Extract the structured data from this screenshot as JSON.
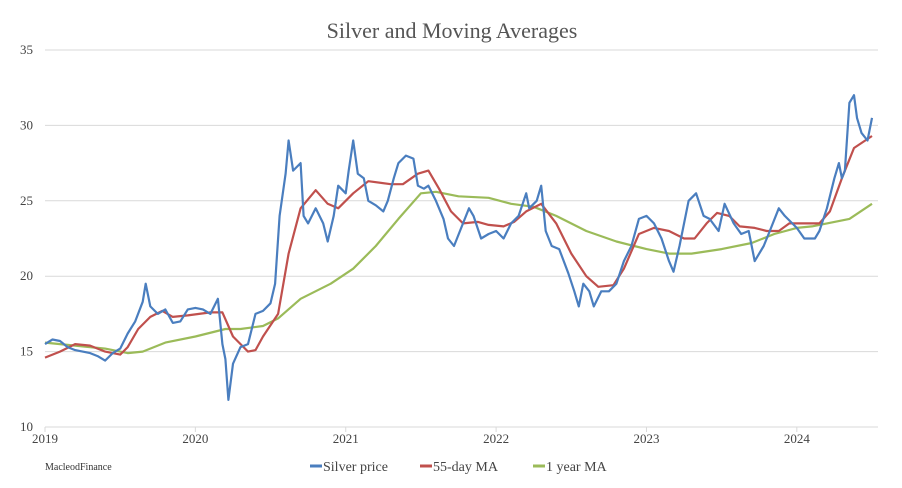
{
  "chart_data": {
    "type": "line",
    "title": "Silver and Moving Averages",
    "xlabel": "",
    "ylabel": "",
    "xlim": [
      2019,
      2024.5
    ],
    "ylim": [
      10,
      35
    ],
    "x_ticks": [
      "2019",
      "2020",
      "2021",
      "2022",
      "2023",
      "2024"
    ],
    "y_ticks": [
      "10",
      "15",
      "20",
      "25",
      "30",
      "35"
    ],
    "grid": true,
    "legend_position": "bottom",
    "credit": "MacleodFinance",
    "series": [
      {
        "name": "Silver price",
        "color": "#4a7ebf",
        "x": [
          2019.0,
          2019.05,
          2019.1,
          2019.15,
          2019.2,
          2019.25,
          2019.3,
          2019.35,
          2019.4,
          2019.45,
          2019.5,
          2019.55,
          2019.6,
          2019.65,
          2019.67,
          2019.7,
          2019.75,
          2019.8,
          2019.85,
          2019.9,
          2019.95,
          2020.0,
          2020.05,
          2020.1,
          2020.15,
          2020.18,
          2020.2,
          2020.22,
          2020.25,
          2020.3,
          2020.35,
          2020.4,
          2020.45,
          2020.5,
          2020.53,
          2020.56,
          2020.6,
          2020.62,
          2020.65,
          2020.7,
          2020.72,
          2020.75,
          2020.8,
          2020.85,
          2020.88,
          2020.92,
          2020.95,
          2021.0,
          2021.02,
          2021.05,
          2021.08,
          2021.12,
          2021.15,
          2021.2,
          2021.25,
          2021.28,
          2021.32,
          2021.35,
          2021.4,
          2021.45,
          2021.48,
          2021.52,
          2021.55,
          2021.6,
          2021.65,
          2021.68,
          2021.72,
          2021.78,
          2021.82,
          2021.85,
          2021.9,
          2021.95,
          2022.0,
          2022.05,
          2022.1,
          2022.15,
          2022.2,
          2022.22,
          2022.27,
          2022.3,
          2022.33,
          2022.37,
          2022.42,
          2022.48,
          2022.52,
          2022.55,
          2022.58,
          2022.62,
          2022.65,
          2022.7,
          2022.75,
          2022.8,
          2022.85,
          2022.9,
          2022.95,
          2023.0,
          2023.05,
          2023.1,
          2023.15,
          2023.18,
          2023.22,
          2023.28,
          2023.33,
          2023.38,
          2023.42,
          2023.48,
          2023.52,
          2023.58,
          2023.63,
          2023.68,
          2023.72,
          2023.78,
          2023.82,
          2023.88,
          2023.92,
          2023.97,
          2024.0,
          2024.05,
          2024.12,
          2024.15,
          2024.2,
          2024.25,
          2024.28,
          2024.3,
          2024.32,
          2024.35,
          2024.38,
          2024.4,
          2024.43,
          2024.47,
          2024.5
        ],
        "y": [
          15.5,
          15.8,
          15.7,
          15.3,
          15.1,
          15.0,
          14.9,
          14.7,
          14.4,
          14.9,
          15.2,
          16.2,
          17.0,
          18.3,
          19.5,
          18.0,
          17.5,
          17.8,
          16.9,
          17.0,
          17.8,
          17.9,
          17.8,
          17.5,
          18.5,
          15.5,
          14.5,
          11.8,
          14.2,
          15.3,
          15.5,
          17.5,
          17.7,
          18.2,
          19.5,
          24.0,
          26.8,
          29.0,
          27.0,
          27.5,
          24.0,
          23.5,
          24.5,
          23.5,
          22.3,
          24.0,
          26.0,
          25.5,
          27.0,
          29.0,
          26.8,
          26.5,
          25.0,
          24.7,
          24.3,
          25.0,
          26.5,
          27.5,
          28.0,
          27.8,
          26.0,
          25.8,
          26.0,
          25.0,
          23.8,
          22.5,
          22.0,
          23.5,
          24.5,
          24.0,
          22.5,
          22.8,
          23.0,
          22.5,
          23.5,
          24.0,
          25.5,
          24.5,
          25.0,
          26.0,
          23.0,
          22.0,
          21.8,
          20.2,
          19.0,
          18.0,
          19.5,
          19.0,
          18.0,
          19.0,
          19.0,
          19.5,
          21.0,
          22.0,
          23.8,
          24.0,
          23.5,
          22.5,
          21.0,
          20.3,
          22.0,
          25.0,
          25.5,
          24.0,
          23.8,
          23.0,
          24.8,
          23.5,
          22.8,
          23.0,
          21.0,
          22.0,
          23.0,
          24.5,
          24.0,
          23.5,
          23.2,
          22.5,
          22.5,
          23.0,
          24.5,
          26.5,
          27.5,
          26.5,
          27.0,
          31.5,
          32.0,
          30.5,
          29.5,
          29.0,
          30.5
        ]
      },
      {
        "name": "55-day MA",
        "color": "#c0504d",
        "x": [
          2019.0,
          2019.1,
          2019.2,
          2019.3,
          2019.4,
          2019.5,
          2019.55,
          2019.62,
          2019.7,
          2019.78,
          2019.85,
          2019.95,
          2020.1,
          2020.18,
          2020.25,
          2020.35,
          2020.4,
          2020.45,
          2020.55,
          2020.62,
          2020.7,
          2020.8,
          2020.88,
          2020.95,
          2021.05,
          2021.15,
          2021.3,
          2021.38,
          2021.48,
          2021.55,
          2021.62,
          2021.7,
          2021.78,
          2021.88,
          2021.95,
          2022.05,
          2022.12,
          2022.2,
          2022.3,
          2022.4,
          2022.5,
          2022.6,
          2022.68,
          2022.78,
          2022.85,
          2022.95,
          2023.05,
          2023.15,
          2023.25,
          2023.32,
          2023.4,
          2023.47,
          2023.55,
          2023.62,
          2023.72,
          2023.8,
          2023.88,
          2023.95,
          2024.05,
          2024.15,
          2024.22,
          2024.3,
          2024.38,
          2024.5
        ],
        "y": [
          14.6,
          15.0,
          15.5,
          15.4,
          15.0,
          14.8,
          15.3,
          16.5,
          17.3,
          17.7,
          17.3,
          17.4,
          17.6,
          17.6,
          16.0,
          15.0,
          15.1,
          16.0,
          17.5,
          21.5,
          24.5,
          25.7,
          24.8,
          24.5,
          25.5,
          26.3,
          26.1,
          26.1,
          26.8,
          27.0,
          25.8,
          24.3,
          23.5,
          23.6,
          23.4,
          23.3,
          23.6,
          24.3,
          24.8,
          23.5,
          21.5,
          20.0,
          19.3,
          19.4,
          20.5,
          22.8,
          23.2,
          23.0,
          22.5,
          22.5,
          23.5,
          24.2,
          24.0,
          23.3,
          23.2,
          23.0,
          23.0,
          23.5,
          23.5,
          23.5,
          24.3,
          26.5,
          28.5,
          29.3
        ]
      },
      {
        "name": "1 year MA",
        "color": "#9bbb59",
        "x": [
          2019.0,
          2019.2,
          2019.4,
          2019.55,
          2019.65,
          2019.8,
          2020.0,
          2020.2,
          2020.3,
          2020.45,
          2020.55,
          2020.7,
          2020.9,
          2021.05,
          2021.2,
          2021.35,
          2021.5,
          2021.6,
          2021.75,
          2021.95,
          2022.1,
          2022.25,
          2022.4,
          2022.6,
          2022.8,
          2023.0,
          2023.15,
          2023.3,
          2023.5,
          2023.7,
          2023.85,
          2024.0,
          2024.1,
          2024.25,
          2024.35,
          2024.5
        ],
        "y": [
          15.6,
          15.4,
          15.2,
          14.9,
          15.0,
          15.6,
          16.0,
          16.5,
          16.5,
          16.7,
          17.2,
          18.5,
          19.5,
          20.5,
          22.0,
          23.8,
          25.5,
          25.6,
          25.3,
          25.2,
          24.8,
          24.6,
          24.0,
          23.0,
          22.3,
          21.8,
          21.5,
          21.5,
          21.8,
          22.2,
          22.8,
          23.2,
          23.3,
          23.6,
          23.8,
          24.8
        ]
      }
    ]
  }
}
